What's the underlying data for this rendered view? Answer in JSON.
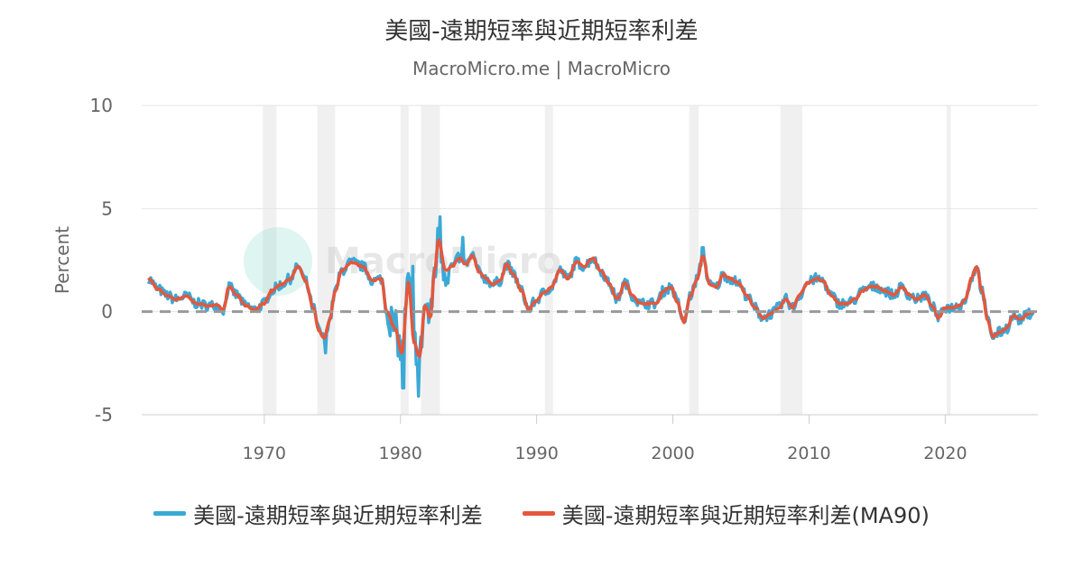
{
  "title": "美國-遠期短率與近期短率利差",
  "subtitle": "MacroMicro.me | MacroMicro",
  "watermark": "MacroMicro",
  "colors": {
    "series1": "#3ba9d6",
    "series2": "#e4573d",
    "zero_line": "#999999",
    "recession": "#f0f0f0",
    "grid": "#e6e6e6",
    "axis_text": "#666666"
  },
  "chart_data": {
    "type": "line",
    "title": "美國-遠期短率與近期短率利差",
    "ylabel": "Percent",
    "xlabel": "",
    "ylim": [
      -5,
      10
    ],
    "xlim": [
      1961.0,
      2026.8
    ],
    "y_ticks": [
      10,
      5,
      0,
      -5
    ],
    "x_ticks": [
      1970,
      1980,
      1990,
      2000,
      2010,
      2020
    ],
    "grid": true,
    "legend_position": "bottom",
    "recessions": [
      [
        1969.9,
        1970.9
      ],
      [
        1973.9,
        1975.2
      ],
      [
        1980.0,
        1980.6
      ],
      [
        1981.5,
        1982.9
      ],
      [
        1990.6,
        1991.2
      ],
      [
        2001.2,
        2001.9
      ],
      [
        2007.9,
        2009.5
      ],
      [
        2020.1,
        2020.4
      ]
    ],
    "reference_line": 0,
    "anchors": [
      [
        1961.5,
        1.6
      ],
      [
        1962.2,
        1.1
      ],
      [
        1962.8,
        0.8
      ],
      [
        1963.5,
        0.6
      ],
      [
        1964.3,
        0.75
      ],
      [
        1965.0,
        0.4
      ],
      [
        1965.8,
        0.3
      ],
      [
        1966.5,
        0.3
      ],
      [
        1967.0,
        0.1
      ],
      [
        1967.4,
        1.2
      ],
      [
        1968.0,
        0.8
      ],
      [
        1968.6,
        0.3
      ],
      [
        1969.3,
        0.1
      ],
      [
        1970.0,
        0.4
      ],
      [
        1970.5,
        1.0
      ],
      [
        1971.2,
        1.3
      ],
      [
        1971.9,
        1.6
      ],
      [
        1972.5,
        2.2
      ],
      [
        1973.0,
        1.5
      ],
      [
        1973.6,
        0.2
      ],
      [
        1974.0,
        -0.9
      ],
      [
        1974.4,
        -1.3
      ],
      [
        1974.8,
        -0.4
      ],
      [
        1975.2,
        1.0
      ],
      [
        1975.7,
        2.0
      ],
      [
        1976.4,
        2.4
      ],
      [
        1977.2,
        2.2
      ],
      [
        1978.0,
        1.5
      ],
      [
        1978.6,
        1.6
      ],
      [
        1979.0,
        0.0
      ],
      [
        1979.6,
        -0.8
      ],
      [
        1980.1,
        -2.0
      ],
      [
        1980.6,
        1.4
      ],
      [
        1981.0,
        -1.5
      ],
      [
        1981.4,
        -2.2
      ],
      [
        1981.8,
        0.3
      ],
      [
        1982.2,
        -0.3
      ],
      [
        1982.5,
        2.0
      ],
      [
        1982.8,
        3.5
      ],
      [
        1983.3,
        2.0
      ],
      [
        1983.8,
        2.2
      ],
      [
        1984.3,
        2.6
      ],
      [
        1984.8,
        2.3
      ],
      [
        1985.3,
        2.7
      ],
      [
        1985.8,
        1.9
      ],
      [
        1986.3,
        1.6
      ],
      [
        1986.8,
        1.3
      ],
      [
        1987.3,
        1.5
      ],
      [
        1987.8,
        2.3
      ],
      [
        1988.3,
        1.8
      ],
      [
        1988.9,
        1.0
      ],
      [
        1989.4,
        0.1
      ],
      [
        1989.9,
        0.5
      ],
      [
        1990.5,
        0.9
      ],
      [
        1991.1,
        1.2
      ],
      [
        1991.7,
        2.0
      ],
      [
        1992.3,
        1.6
      ],
      [
        1992.9,
        2.4
      ],
      [
        1993.5,
        2.2
      ],
      [
        1994.1,
        2.6
      ],
      [
        1994.7,
        2.0
      ],
      [
        1995.3,
        1.4
      ],
      [
        1995.9,
        0.6
      ],
      [
        1996.5,
        1.4
      ],
      [
        1997.0,
        0.8
      ],
      [
        1997.6,
        0.4
      ],
      [
        1998.2,
        0.4
      ],
      [
        1998.8,
        0.4
      ],
      [
        1999.3,
        1.0
      ],
      [
        1999.9,
        1.2
      ],
      [
        2000.3,
        0.5
      ],
      [
        2000.8,
        -0.5
      ],
      [
        2001.3,
        0.8
      ],
      [
        2001.8,
        1.6
      ],
      [
        2002.2,
        2.7
      ],
      [
        2002.7,
        1.3
      ],
      [
        2003.2,
        1.2
      ],
      [
        2003.7,
        1.8
      ],
      [
        2004.2,
        1.6
      ],
      [
        2004.8,
        1.4
      ],
      [
        2005.4,
        0.8
      ],
      [
        2006.0,
        0.2
      ],
      [
        2006.6,
        -0.3
      ],
      [
        2007.2,
        -0.1
      ],
      [
        2007.8,
        0.2
      ],
      [
        2008.3,
        0.6
      ],
      [
        2008.8,
        0.2
      ],
      [
        2009.3,
        0.8
      ],
      [
        2009.9,
        1.4
      ],
      [
        2010.5,
        1.6
      ],
      [
        2011.0,
        1.5
      ],
      [
        2011.6,
        0.8
      ],
      [
        2012.2,
        0.4
      ],
      [
        2012.8,
        0.4
      ],
      [
        2013.4,
        0.6
      ],
      [
        2013.9,
        1.0
      ],
      [
        2014.5,
        1.2
      ],
      [
        2015.0,
        1.2
      ],
      [
        2015.6,
        1.0
      ],
      [
        2016.2,
        0.8
      ],
      [
        2016.8,
        1.2
      ],
      [
        2017.4,
        0.8
      ],
      [
        2017.9,
        0.6
      ],
      [
        2018.5,
        0.8
      ],
      [
        2019.0,
        0.3
      ],
      [
        2019.5,
        -0.3
      ],
      [
        2020.0,
        0.2
      ],
      [
        2020.5,
        0.2
      ],
      [
        2021.0,
        0.3
      ],
      [
        2021.5,
        0.6
      ],
      [
        2021.9,
        1.6
      ],
      [
        2022.3,
        2.2
      ],
      [
        2022.7,
        1.0
      ],
      [
        2023.1,
        -0.4
      ],
      [
        2023.5,
        -1.2
      ],
      [
        2024.0,
        -1.0
      ],
      [
        2024.5,
        -0.8
      ],
      [
        2025.0,
        -0.2
      ],
      [
        2025.5,
        -0.4
      ],
      [
        2026.1,
        -0.1
      ],
      [
        2026.5,
        0.0
      ]
    ],
    "series": [
      {
        "name": "美國-遠期短率與近期短率利差",
        "color": "#3ba9d6"
      },
      {
        "name": "美國-遠期短率與近期短率利差(MA90)",
        "color": "#e4573d"
      }
    ]
  }
}
